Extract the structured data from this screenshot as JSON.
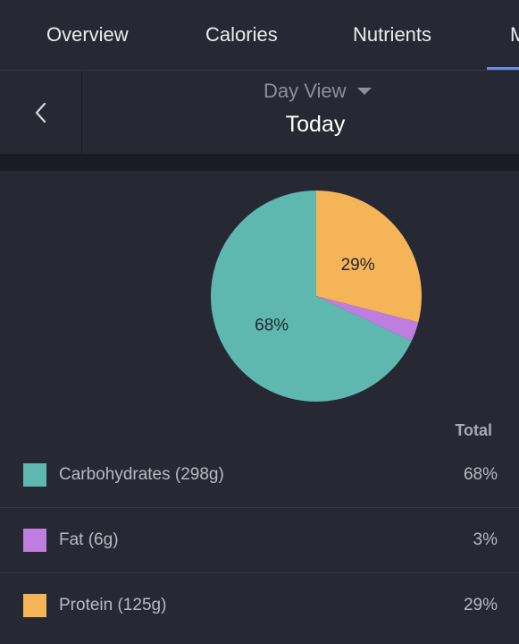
{
  "tabs": [
    {
      "label": "Overview"
    },
    {
      "label": "Calories"
    },
    {
      "label": "Nutrients"
    },
    {
      "label": "M"
    }
  ],
  "date_bar": {
    "back_icon": "chevron-left-icon",
    "view_label": "Day View",
    "view_icon": "caret-down-icon",
    "date_label": "Today"
  },
  "colors": {
    "background": "#262834",
    "carbohydrates": "#5fb8b0",
    "fat": "#c07de0",
    "protein": "#f5b457",
    "tab_indicator": "#6d8ee8"
  },
  "chart_data": {
    "type": "pie",
    "slices": [
      {
        "name": "Protein",
        "value": 29,
        "label": "29%",
        "color": "#f5b457"
      },
      {
        "name": "Fat",
        "value": 3,
        "label": "",
        "color": "#c07de0"
      },
      {
        "name": "Carbohydrates",
        "value": 68,
        "label": "68%",
        "color": "#5fb8b0"
      }
    ]
  },
  "legend": {
    "total_header": "Total",
    "items": [
      {
        "label": "Carbohydrates (298g)",
        "value": "68%",
        "color": "#5fb8b0"
      },
      {
        "label": "Fat (6g)",
        "value": "3%",
        "color": "#c07de0"
      },
      {
        "label": "Protein (125g)",
        "value": "29%",
        "color": "#f5b457"
      }
    ]
  }
}
